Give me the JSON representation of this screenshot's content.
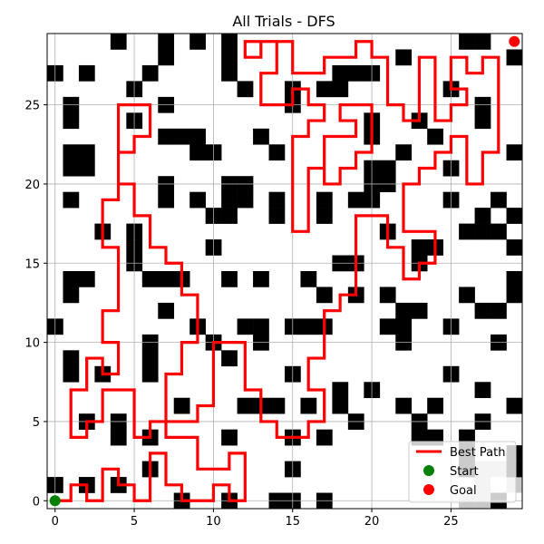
{
  "chart_data": {
    "type": "grid-path",
    "title": "All Trials - DFS",
    "xlabel": "",
    "ylabel": "",
    "grid_size": [
      30,
      30
    ],
    "xlim": [
      -0.5,
      29.5
    ],
    "ylim": [
      -0.5,
      29.5
    ],
    "xticks": [
      0,
      5,
      10,
      15,
      20,
      25
    ],
    "yticks": [
      0,
      5,
      10,
      15,
      20,
      25
    ],
    "grid": true,
    "start": [
      0,
      0
    ],
    "goal": [
      29,
      29
    ],
    "legend": {
      "placement": "lower-right",
      "entries": [
        {
          "label": "Best Path",
          "kind": "line",
          "color": "#ff0000"
        },
        {
          "label": "Start",
          "kind": "marker",
          "color": "#008000"
        },
        {
          "label": "Goal",
          "kind": "marker",
          "color": "#ff0000"
        }
      ]
    },
    "colors": {
      "wall": "#000000",
      "visited": "#c8c8c8",
      "path": "#ff0000",
      "start": "#008000",
      "goal": "#ff0000"
    },
    "walls": [
      [
        4,
        29
      ],
      [
        7,
        29
      ],
      [
        9,
        29
      ],
      [
        11,
        29
      ],
      [
        26,
        29
      ],
      [
        27,
        29
      ],
      [
        7,
        28
      ],
      [
        11,
        28
      ],
      [
        22,
        28
      ],
      [
        29,
        28
      ],
      [
        0,
        27
      ],
      [
        2,
        27
      ],
      [
        6,
        27
      ],
      [
        11,
        27
      ],
      [
        18,
        27
      ],
      [
        19,
        27
      ],
      [
        20,
        27
      ],
      [
        5,
        26
      ],
      [
        12,
        26
      ],
      [
        15,
        26
      ],
      [
        17,
        26
      ],
      [
        18,
        26
      ],
      [
        25,
        26
      ],
      [
        1,
        25
      ],
      [
        7,
        25
      ],
      [
        15,
        25
      ],
      [
        27,
        25
      ],
      [
        1,
        24
      ],
      [
        5,
        24
      ],
      [
        20,
        24
      ],
      [
        23,
        24
      ],
      [
        27,
        24
      ],
      [
        7,
        23
      ],
      [
        8,
        23
      ],
      [
        9,
        23
      ],
      [
        13,
        23
      ],
      [
        20,
        23
      ],
      [
        24,
        23
      ],
      [
        1,
        22
      ],
      [
        2,
        22
      ],
      [
        9,
        22
      ],
      [
        10,
        22
      ],
      [
        14,
        22
      ],
      [
        22,
        22
      ],
      [
        29,
        22
      ],
      [
        1,
        21
      ],
      [
        2,
        21
      ],
      [
        20,
        21
      ],
      [
        21,
        21
      ],
      [
        25,
        21
      ],
      [
        7,
        20
      ],
      [
        11,
        20
      ],
      [
        12,
        20
      ],
      [
        20,
        20
      ],
      [
        21,
        20
      ],
      [
        1,
        19
      ],
      [
        7,
        19
      ],
      [
        9,
        19
      ],
      [
        11,
        19
      ],
      [
        12,
        19
      ],
      [
        14,
        19
      ],
      [
        17,
        19
      ],
      [
        19,
        19
      ],
      [
        20,
        19
      ],
      [
        25,
        19
      ],
      [
        28,
        19
      ],
      [
        10,
        18
      ],
      [
        11,
        18
      ],
      [
        14,
        18
      ],
      [
        17,
        18
      ],
      [
        27,
        18
      ],
      [
        29,
        18
      ],
      [
        3,
        17
      ],
      [
        5,
        17
      ],
      [
        21,
        17
      ],
      [
        26,
        17
      ],
      [
        27,
        17
      ],
      [
        28,
        17
      ],
      [
        5,
        16
      ],
      [
        10,
        16
      ],
      [
        23,
        16
      ],
      [
        24,
        16
      ],
      [
        29,
        16
      ],
      [
        5,
        15
      ],
      [
        18,
        15
      ],
      [
        19,
        15
      ],
      [
        23,
        15
      ],
      [
        1,
        14
      ],
      [
        2,
        14
      ],
      [
        6,
        14
      ],
      [
        7,
        14
      ],
      [
        8,
        14
      ],
      [
        11,
        14
      ],
      [
        13,
        14
      ],
      [
        16,
        14
      ],
      [
        29,
        14
      ],
      [
        1,
        13
      ],
      [
        17,
        13
      ],
      [
        19,
        13
      ],
      [
        21,
        13
      ],
      [
        26,
        13
      ],
      [
        29,
        13
      ],
      [
        7,
        12
      ],
      [
        22,
        12
      ],
      [
        23,
        12
      ],
      [
        27,
        12
      ],
      [
        28,
        12
      ],
      [
        0,
        11
      ],
      [
        9,
        11
      ],
      [
        12,
        11
      ],
      [
        13,
        11
      ],
      [
        15,
        11
      ],
      [
        16,
        11
      ],
      [
        17,
        11
      ],
      [
        21,
        11
      ],
      [
        22,
        11
      ],
      [
        25,
        11
      ],
      [
        6,
        10
      ],
      [
        10,
        10
      ],
      [
        13,
        10
      ],
      [
        22,
        10
      ],
      [
        28,
        10
      ],
      [
        1,
        9
      ],
      [
        6,
        9
      ],
      [
        11,
        9
      ],
      [
        1,
        8
      ],
      [
        3,
        8
      ],
      [
        6,
        8
      ],
      [
        15,
        8
      ],
      [
        25,
        8
      ],
      [
        18,
        7
      ],
      [
        20,
        7
      ],
      [
        27,
        7
      ],
      [
        8,
        6
      ],
      [
        12,
        6
      ],
      [
        13,
        6
      ],
      [
        14,
        6
      ],
      [
        16,
        6
      ],
      [
        18,
        6
      ],
      [
        22,
        6
      ],
      [
        24,
        6
      ],
      [
        29,
        6
      ],
      [
        2,
        5
      ],
      [
        4,
        5
      ],
      [
        19,
        5
      ],
      [
        23,
        5
      ],
      [
        27,
        5
      ],
      [
        4,
        4
      ],
      [
        6,
        4
      ],
      [
        11,
        4
      ],
      [
        15,
        4
      ],
      [
        17,
        4
      ],
      [
        23,
        4
      ],
      [
        24,
        4
      ],
      [
        26,
        4
      ],
      [
        26,
        3
      ],
      [
        29,
        3
      ],
      [
        6,
        2
      ],
      [
        15,
        2
      ],
      [
        26,
        2
      ],
      [
        29,
        2
      ],
      [
        0,
        1
      ],
      [
        2,
        1
      ],
      [
        4,
        1
      ],
      [
        8,
        0
      ],
      [
        11,
        0
      ],
      [
        14,
        0
      ],
      [
        15,
        0
      ],
      [
        17,
        0
      ],
      [
        28,
        0
      ],
      [
        3,
        -1
      ],
      [
        13,
        -1
      ],
      [
        15,
        -1
      ]
    ],
    "visited": [
      [
        26,
        2
      ],
      [
        27,
        2
      ],
      [
        28,
        2
      ],
      [
        27,
        1
      ],
      [
        29,
        1
      ],
      [
        26,
        0
      ],
      [
        27,
        0
      ]
    ],
    "series": [
      {
        "name": "Best Path",
        "points": [
          [
            0,
            0
          ],
          [
            1,
            0
          ],
          [
            1,
            1
          ],
          [
            2,
            1
          ],
          [
            2,
            0
          ],
          [
            3,
            0
          ],
          [
            3,
            2
          ],
          [
            4,
            2
          ],
          [
            4,
            1
          ],
          [
            5,
            1
          ],
          [
            5,
            0
          ],
          [
            6,
            0
          ],
          [
            6,
            3
          ],
          [
            7,
            3
          ],
          [
            7,
            1
          ],
          [
            8,
            1
          ],
          [
            8,
            0
          ],
          [
            10,
            0
          ],
          [
            10,
            1
          ],
          [
            11,
            1
          ],
          [
            11,
            0
          ],
          [
            12,
            0
          ],
          [
            12,
            3
          ],
          [
            11,
            3
          ],
          [
            11,
            2
          ],
          [
            9,
            2
          ],
          [
            9,
            4
          ],
          [
            7,
            4
          ],
          [
            7,
            5
          ],
          [
            6,
            5
          ],
          [
            6,
            4
          ],
          [
            5,
            4
          ],
          [
            5,
            7
          ],
          [
            3,
            7
          ],
          [
            3,
            5
          ],
          [
            2,
            5
          ],
          [
            2,
            4
          ],
          [
            1,
            4
          ],
          [
            1,
            7
          ],
          [
            2,
            7
          ],
          [
            2,
            9
          ],
          [
            3,
            9
          ],
          [
            3,
            8
          ],
          [
            4,
            8
          ],
          [
            4,
            10
          ],
          [
            3,
            10
          ],
          [
            3,
            12
          ],
          [
            4,
            12
          ],
          [
            4,
            16
          ],
          [
            3,
            16
          ],
          [
            3,
            19
          ],
          [
            4,
            19
          ],
          [
            4,
            22
          ],
          [
            5,
            22
          ],
          [
            5,
            23
          ],
          [
            6,
            23
          ],
          [
            6,
            25
          ],
          [
            4,
            25
          ],
          [
            4,
            20
          ],
          [
            5,
            20
          ],
          [
            5,
            18
          ],
          [
            6,
            18
          ],
          [
            6,
            16
          ],
          [
            7,
            16
          ],
          [
            7,
            15
          ],
          [
            8,
            15
          ],
          [
            8,
            13
          ],
          [
            9,
            13
          ],
          [
            9,
            10
          ],
          [
            8,
            10
          ],
          [
            8,
            8
          ],
          [
            7,
            8
          ],
          [
            7,
            5
          ],
          [
            9,
            5
          ],
          [
            9,
            6
          ],
          [
            10,
            6
          ],
          [
            10,
            10
          ],
          [
            12,
            10
          ],
          [
            12,
            7
          ],
          [
            13,
            7
          ],
          [
            13,
            5
          ],
          [
            14,
            5
          ],
          [
            14,
            4
          ],
          [
            16,
            4
          ],
          [
            16,
            5
          ],
          [
            17,
            5
          ],
          [
            17,
            7
          ],
          [
            16,
            7
          ],
          [
            16,
            9
          ],
          [
            17,
            9
          ],
          [
            17,
            12
          ],
          [
            18,
            12
          ],
          [
            18,
            13
          ],
          [
            19,
            13
          ],
          [
            19,
            18
          ],
          [
            21,
            18
          ],
          [
            21,
            16
          ],
          [
            22,
            16
          ],
          [
            22,
            14
          ],
          [
            23,
            14
          ],
          [
            23,
            15
          ],
          [
            24,
            15
          ],
          [
            24,
            17
          ],
          [
            22,
            17
          ],
          [
            22,
            20
          ],
          [
            23,
            20
          ],
          [
            23,
            21
          ],
          [
            24,
            21
          ],
          [
            24,
            22
          ],
          [
            25,
            22
          ],
          [
            25,
            23
          ],
          [
            26,
            23
          ],
          [
            26,
            20
          ],
          [
            27,
            20
          ],
          [
            27,
            22
          ],
          [
            28,
            22
          ],
          [
            28,
            28
          ],
          [
            27,
            28
          ],
          [
            27,
            27
          ],
          [
            26,
            27
          ],
          [
            26,
            28
          ],
          [
            25,
            28
          ],
          [
            25,
            26
          ],
          [
            26,
            26
          ],
          [
            26,
            25
          ],
          [
            25,
            25
          ],
          [
            25,
            24
          ],
          [
            24,
            24
          ],
          [
            24,
            28
          ],
          [
            23,
            28
          ],
          [
            23,
            24
          ],
          [
            22,
            24
          ],
          [
            22,
            25
          ],
          [
            21,
            25
          ],
          [
            21,
            28
          ],
          [
            20,
            28
          ],
          [
            20,
            29
          ],
          [
            19,
            29
          ],
          [
            19,
            28
          ],
          [
            17,
            28
          ],
          [
            17,
            27
          ],
          [
            15,
            27
          ],
          [
            15,
            29
          ],
          [
            13,
            29
          ],
          [
            13,
            28
          ],
          [
            12,
            28
          ],
          [
            12,
            29
          ],
          [
            14,
            29
          ],
          [
            14,
            27
          ],
          [
            13,
            27
          ],
          [
            13,
            25
          ],
          [
            15,
            25
          ],
          [
            15,
            26
          ],
          [
            16,
            26
          ],
          [
            16,
            25
          ],
          [
            17,
            25
          ],
          [
            17,
            24
          ],
          [
            16,
            24
          ],
          [
            16,
            23
          ],
          [
            15,
            23
          ],
          [
            15,
            17
          ],
          [
            16,
            17
          ],
          [
            16,
            21
          ],
          [
            17,
            21
          ],
          [
            17,
            23
          ],
          [
            19,
            23
          ],
          [
            19,
            24
          ],
          [
            18,
            24
          ],
          [
            18,
            25
          ],
          [
            20,
            25
          ],
          [
            20,
            22
          ],
          [
            19,
            22
          ],
          [
            19,
            21
          ],
          [
            18,
            21
          ],
          [
            18,
            20
          ],
          [
            17,
            20
          ],
          [
            17,
            21
          ]
        ]
      }
    ]
  }
}
